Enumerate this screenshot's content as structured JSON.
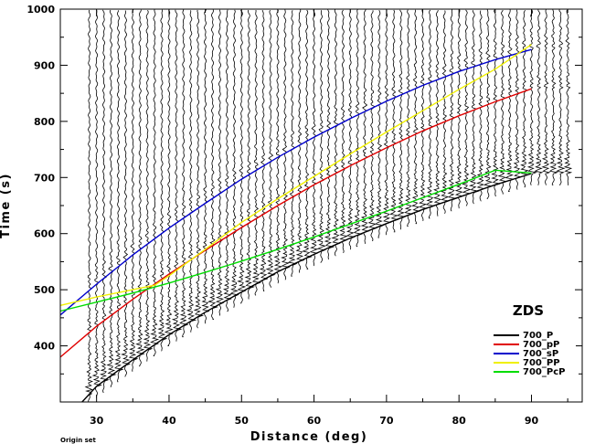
{
  "chart_data": {
    "type": "line",
    "xlabel": "Distance (deg)",
    "ylabel": "Time (s)",
    "xlim": [
      25,
      97
    ],
    "ylim": [
      300,
      1000
    ],
    "xticks": [
      30,
      40,
      50,
      60,
      70,
      80,
      90
    ],
    "yticks": [
      400,
      500,
      600,
      700,
      800,
      900,
      1000
    ],
    "legend_title": "ZDS",
    "legend_position": "bottom-right",
    "footnote": "Origin set",
    "trace_distances": [
      29,
      30,
      31,
      32,
      33,
      34,
      35,
      36,
      37,
      38,
      39,
      40,
      41,
      42,
      43,
      44,
      45,
      46,
      47,
      48,
      49,
      50,
      51,
      52,
      53,
      54,
      55,
      56,
      57,
      58,
      59,
      60,
      61,
      62,
      63,
      64,
      65,
      66,
      67,
      68,
      69,
      70,
      71,
      72,
      73,
      74,
      75,
      76,
      77,
      78,
      79,
      80,
      81,
      82,
      83,
      84,
      85,
      86,
      87,
      88,
      89,
      90,
      91,
      92,
      93,
      94,
      95
    ],
    "series": [
      {
        "name": "700_P",
        "color": "#000000",
        "x": [
          28,
          30,
          35,
          40,
          45,
          50,
          55,
          60,
          65,
          70,
          75,
          80,
          85,
          90
        ],
        "y": [
          300,
          328,
          375,
          420,
          460,
          496,
          532,
          563,
          592,
          618,
          643,
          665,
          687,
          707
        ]
      },
      {
        "name": "700_pP",
        "color": "#e00000",
        "x": [
          25,
          30,
          35,
          40,
          45,
          50,
          55,
          60,
          65,
          70,
          75,
          80,
          85,
          90
        ],
        "y": [
          380,
          435,
          483,
          528,
          570,
          611,
          650,
          687,
          721,
          753,
          783,
          810,
          835,
          858
        ]
      },
      {
        "name": "700_sP",
        "color": "#0000cc",
        "x": [
          25,
          30,
          35,
          40,
          45,
          50,
          55,
          60,
          65,
          70,
          75,
          80,
          85,
          90
        ],
        "y": [
          455,
          510,
          562,
          610,
          654,
          697,
          736,
          772,
          805,
          836,
          864,
          889,
          910,
          928
        ]
      },
      {
        "name": "700_PP",
        "color": "#f0f000",
        "x": [
          25,
          30,
          35,
          38,
          40,
          45,
          50,
          55,
          60,
          65,
          70,
          75,
          80,
          85,
          90
        ],
        "y": [
          472,
          487,
          500,
          508,
          525,
          572,
          620,
          662,
          702,
          742,
          781,
          819,
          857,
          893,
          937
        ]
      },
      {
        "name": "700_PcP",
        "color": "#00dd00",
        "x": [
          25,
          30,
          35,
          40,
          45,
          50,
          55,
          60,
          65,
          70,
          75,
          80,
          85,
          90
        ],
        "y": [
          462,
          478,
          494,
          512,
          531,
          551,
          572,
          594,
          617,
          640,
          664,
          688,
          713,
          708
        ]
      }
    ]
  }
}
